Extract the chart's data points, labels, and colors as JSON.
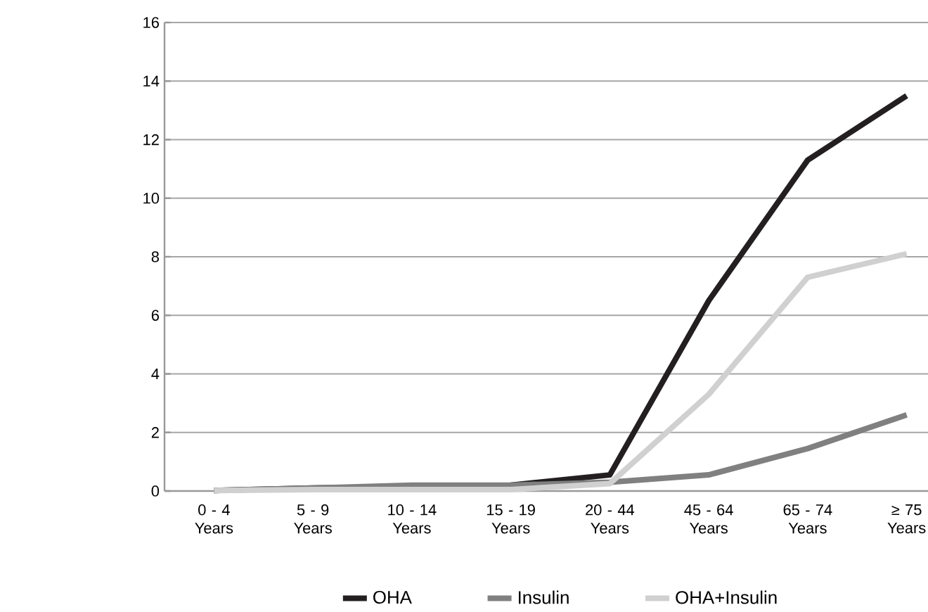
{
  "chart_data": {
    "type": "line",
    "categories": [
      "0  -  4 Years",
      "5  -  9 Years",
      "10 - 14 Years",
      "15  - 19 Years",
      "20  - 44 Years",
      "45  - 64 Years",
      "65  - 74 Years",
      "≥ 75 Years"
    ],
    "series": [
      {
        "name": "OHA",
        "color": "#231f20",
        "values": [
          0.02,
          0.1,
          0.15,
          0.2,
          0.55,
          6.5,
          11.3,
          13.5
        ]
      },
      {
        "name": "Insulin",
        "color": "#808080",
        "values": [
          0.02,
          0.1,
          0.2,
          0.2,
          0.3,
          0.55,
          1.45,
          2.6
        ]
      },
      {
        "name": "OHA+Insulin",
        "color": "#d0d0d0",
        "values": [
          0.02,
          0.05,
          0.05,
          0.05,
          0.25,
          3.3,
          7.3,
          8.1
        ]
      }
    ],
    "ylim": [
      0,
      16
    ],
    "yticks": [
      0,
      2,
      4,
      6,
      8,
      10,
      12,
      14,
      16
    ],
    "grid": "y",
    "legend": "bottom",
    "marker": "none",
    "line_style": "solid"
  }
}
